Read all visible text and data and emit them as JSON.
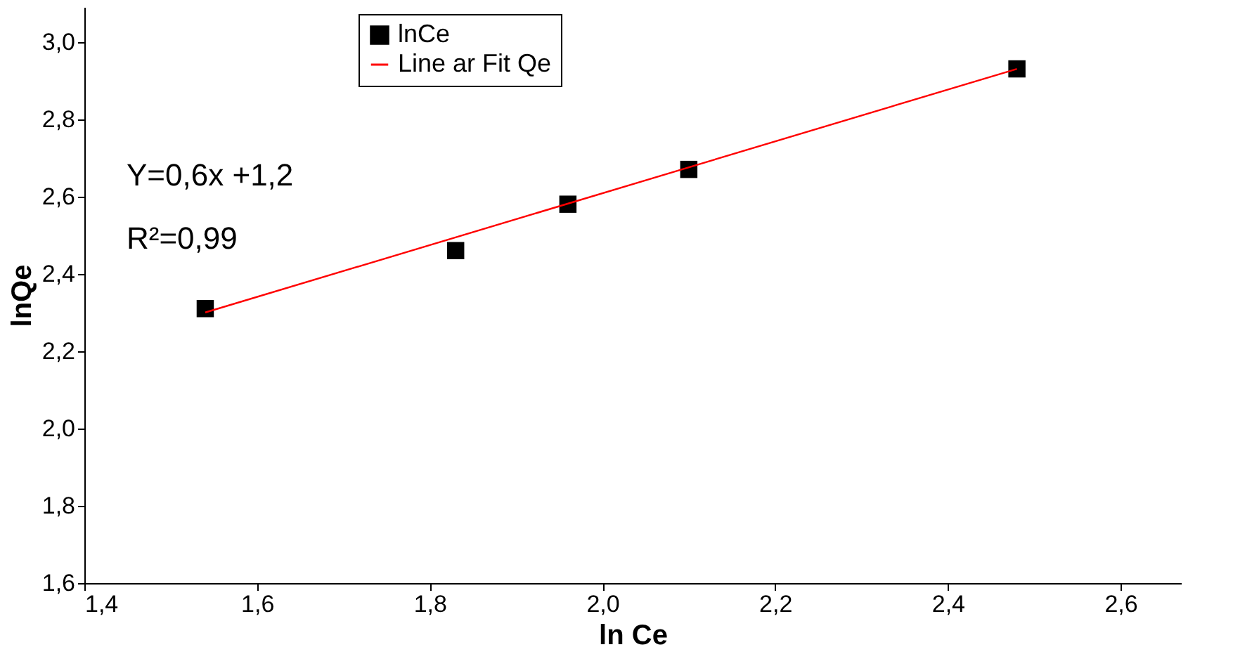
{
  "chart_data": {
    "type": "scatter",
    "xlabel": "ln Ce",
    "ylabel": "lnQe",
    "xlim": [
      1.4,
      2.67
    ],
    "ylim": [
      1.6,
      3.09
    ],
    "xticks": [
      {
        "value": 1.4,
        "label": "1,4"
      },
      {
        "value": 1.6,
        "label": "1,6"
      },
      {
        "value": 1.8,
        "label": "1,8"
      },
      {
        "value": 2.0,
        "label": "2,0"
      },
      {
        "value": 2.2,
        "label": "2,2"
      },
      {
        "value": 2.4,
        "label": "2,4"
      },
      {
        "value": 2.6,
        "label": "2,6"
      }
    ],
    "yticks": [
      {
        "value": 1.6,
        "label": "1,6"
      },
      {
        "value": 1.8,
        "label": "1,8"
      },
      {
        "value": 2.0,
        "label": "2,0"
      },
      {
        "value": 2.2,
        "label": "2,2"
      },
      {
        "value": 2.4,
        "label": "2,4"
      },
      {
        "value": 2.6,
        "label": "2,6"
      },
      {
        "value": 2.8,
        "label": "2,8"
      },
      {
        "value": 3.0,
        "label": "3,0"
      }
    ],
    "series": [
      {
        "name": "lnCe",
        "color": "#000000",
        "marker": "square",
        "x": [
          1.54,
          1.83,
          1.96,
          2.1,
          2.48
        ],
        "values": [
          2.31,
          2.46,
          2.58,
          2.67,
          2.93
        ]
      },
      {
        "name": "Line ar Fit Qe",
        "type": "line",
        "color": "#ff0000",
        "line_style": "solid",
        "marker": "none",
        "x": [
          1.54,
          2.48
        ],
        "values": [
          2.3,
          2.93
        ]
      }
    ],
    "annotations": [
      {
        "text": "Y=0,6x +1,2"
      },
      {
        "text": "R²=0,99"
      }
    ],
    "legend": "top",
    "grid": false
  }
}
